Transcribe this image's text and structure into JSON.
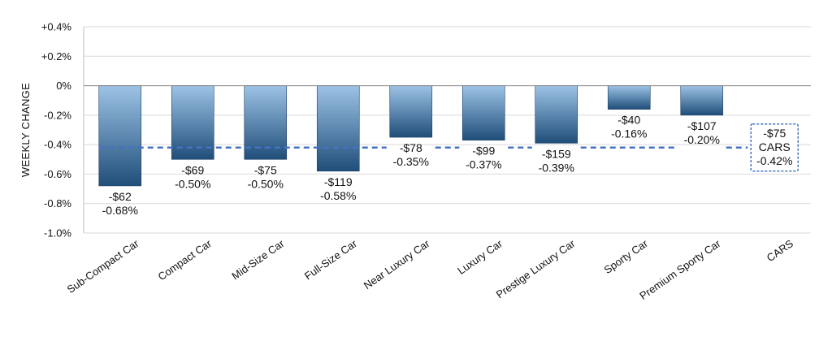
{
  "chart_data": {
    "type": "bar",
    "ylabel": "WEEKLY CHANGE",
    "xlabel": "",
    "ylim": [
      -1.0,
      0.4
    ],
    "yticks": [
      0.4,
      0.2,
      0,
      -0.2,
      -0.4,
      -0.6,
      -0.8,
      -1.0
    ],
    "ytick_labels": [
      "+0.4%",
      "+0.2%",
      "0%",
      "-0.2%",
      "-0.4%",
      "-0.6%",
      "-0.8%",
      "-1.0%"
    ],
    "grid": true,
    "categories": [
      "Sub-Compact Car",
      "Compact Car",
      "Mid-Size Car",
      "Full-Size Car",
      "Near Luxury Car",
      "Luxury Car",
      "Prestige Luxury Car",
      "Sporty Car",
      "Premium Sporty Car",
      "CARS"
    ],
    "values": [
      -0.68,
      -0.5,
      -0.5,
      -0.58,
      -0.35,
      -0.37,
      -0.39,
      -0.16,
      -0.2,
      null
    ],
    "dollar_labels": [
      "-$62",
      "-$69",
      "-$75",
      "-$119",
      "-$78",
      "-$99",
      "-$159",
      "-$40",
      "-$107",
      "-$75"
    ],
    "percent_labels": [
      "-0.68%",
      "-0.50%",
      "-0.50%",
      "-0.58%",
      "-0.35%",
      "-0.37%",
      "-0.39%",
      "-0.16%",
      "-0.20%",
      "-0.42%"
    ],
    "reference_line": {
      "value": -0.42,
      "label_lines": [
        "-$75",
        "CARS",
        "-0.42%"
      ],
      "color": "#4472c4",
      "style": "dashed"
    },
    "bar_gradient": {
      "top": "#9dc3e6",
      "bottom": "#1f4e79"
    }
  }
}
